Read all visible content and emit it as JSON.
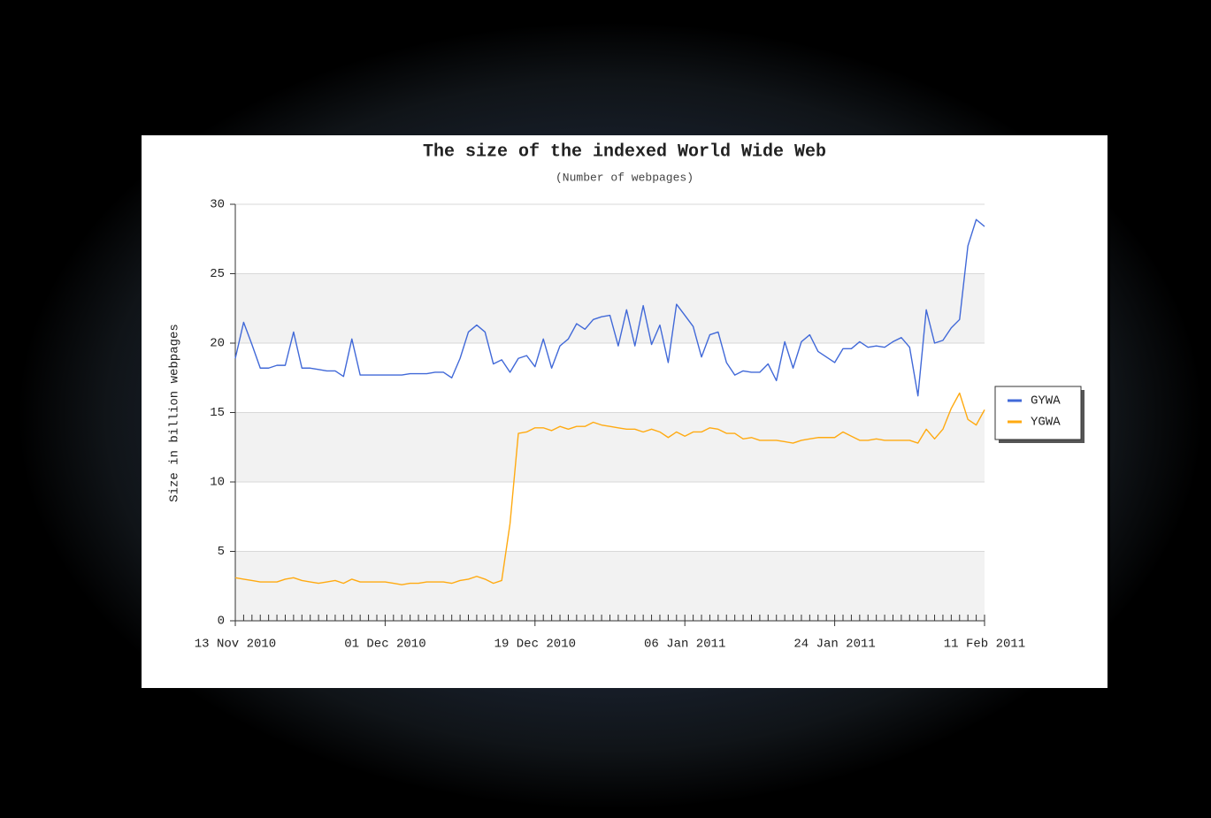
{
  "chart_data": {
    "type": "line",
    "title": "The size of the indexed World Wide Web",
    "subtitle": "(Number of webpages)",
    "y_label": "Size in billion webpages",
    "x": [
      "2010-11-13",
      "2010-11-14",
      "2010-11-15",
      "2010-11-16",
      "2010-11-17",
      "2010-11-18",
      "2010-11-19",
      "2010-11-20",
      "2010-11-21",
      "2010-11-22",
      "2010-11-23",
      "2010-11-24",
      "2010-11-25",
      "2010-11-26",
      "2010-11-27",
      "2010-11-28",
      "2010-11-29",
      "2010-11-30",
      "2010-12-01",
      "2010-12-02",
      "2010-12-03",
      "2010-12-04",
      "2010-12-05",
      "2010-12-06",
      "2010-12-07",
      "2010-12-08",
      "2010-12-09",
      "2010-12-10",
      "2010-12-11",
      "2010-12-12",
      "2010-12-13",
      "2010-12-14",
      "2010-12-15",
      "2010-12-16",
      "2010-12-17",
      "2010-12-18",
      "2010-12-19",
      "2010-12-20",
      "2010-12-21",
      "2010-12-22",
      "2010-12-23",
      "2010-12-24",
      "2010-12-25",
      "2010-12-26",
      "2010-12-27",
      "2010-12-28",
      "2010-12-29",
      "2010-12-30",
      "2010-12-31",
      "2011-01-01",
      "2011-01-02",
      "2011-01-03",
      "2011-01-04",
      "2011-01-05",
      "2011-01-06",
      "2011-01-07",
      "2011-01-08",
      "2011-01-09",
      "2011-01-10",
      "2011-01-11",
      "2011-01-12",
      "2011-01-13",
      "2011-01-14",
      "2011-01-15",
      "2011-01-16",
      "2011-01-17",
      "2011-01-18",
      "2011-01-19",
      "2011-01-20",
      "2011-01-21",
      "2011-01-22",
      "2011-01-23",
      "2011-01-24",
      "2011-01-25",
      "2011-01-26",
      "2011-01-27",
      "2011-01-28",
      "2011-01-29",
      "2011-01-30",
      "2011-01-31",
      "2011-02-01",
      "2011-02-02",
      "2011-02-03",
      "2011-02-04",
      "2011-02-05",
      "2011-02-06",
      "2011-02-07",
      "2011-02-08",
      "2011-02-09",
      "2011-02-10",
      "2011-02-11"
    ],
    "series": [
      {
        "name": "GYWA",
        "color": "#4169d8",
        "values": [
          18.9,
          21.5,
          19.9,
          18.2,
          18.2,
          18.4,
          18.4,
          20.8,
          18.2,
          18.2,
          18.1,
          18.0,
          18.0,
          17.6,
          20.3,
          17.7,
          17.7,
          17.7,
          17.7,
          17.7,
          17.7,
          17.8,
          17.8,
          17.8,
          17.9,
          17.9,
          17.5,
          18.9,
          20.8,
          21.3,
          20.8,
          18.5,
          18.8,
          17.9,
          18.9,
          19.1,
          18.3,
          20.3,
          18.2,
          19.8,
          20.3,
          21.4,
          21.0,
          21.7,
          21.9,
          22.0,
          19.8,
          22.4,
          19.8,
          22.7,
          19.9,
          21.3,
          18.6,
          22.8,
          22.0,
          21.2,
          19.0,
          20.6,
          20.8,
          18.6,
          17.7,
          18.0,
          17.9,
          17.9,
          18.5,
          17.3,
          20.1,
          18.2,
          20.1,
          20.6,
          19.4,
          19.0,
          18.6,
          19.6,
          19.6,
          20.1,
          19.7,
          19.8,
          19.7,
          20.1,
          20.4,
          19.7,
          16.2,
          22.4,
          20.0,
          20.2,
          21.1,
          21.7,
          27.0,
          28.9,
          28.4
        ]
      },
      {
        "name": "YGWA",
        "color": "#ffaa11",
        "values": [
          3.1,
          3.0,
          2.9,
          2.8,
          2.8,
          2.8,
          3.0,
          3.1,
          2.9,
          2.8,
          2.7,
          2.8,
          2.9,
          2.7,
          3.0,
          2.8,
          2.8,
          2.8,
          2.8,
          2.7,
          2.6,
          2.7,
          2.7,
          2.8,
          2.8,
          2.8,
          2.7,
          2.9,
          3.0,
          3.2,
          3.0,
          2.7,
          2.9,
          7.0,
          13.5,
          13.6,
          13.9,
          13.9,
          13.7,
          14.0,
          13.8,
          14.0,
          14.0,
          14.3,
          14.1,
          14.0,
          13.9,
          13.8,
          13.8,
          13.6,
          13.8,
          13.6,
          13.2,
          13.6,
          13.3,
          13.6,
          13.6,
          13.9,
          13.8,
          13.5,
          13.5,
          13.1,
          13.2,
          13.0,
          13.0,
          13.0,
          12.9,
          12.8,
          13.0,
          13.1,
          13.2,
          13.2,
          13.2,
          13.6,
          13.3,
          13.0,
          13.0,
          13.1,
          13.0,
          13.0,
          13.0,
          13.0,
          12.8,
          13.8,
          13.1,
          13.8,
          15.3,
          16.4,
          14.5,
          14.1,
          15.2
        ]
      }
    ],
    "xlim": [
      "2010-11-13",
      "2011-02-11"
    ],
    "xticks": [
      {
        "value": "2010-11-13",
        "label": "13 Nov 2010"
      },
      {
        "value": "2010-12-01",
        "label": "01 Dec 2010"
      },
      {
        "value": "2010-12-19",
        "label": "19 Dec 2010"
      },
      {
        "value": "2011-01-06",
        "label": "06 Jan 2011"
      },
      {
        "value": "2011-01-24",
        "label": "24 Jan 2011"
      },
      {
        "value": "2011-02-11",
        "label": "11 Feb 2011"
      }
    ],
    "ylim": [
      0,
      30
    ],
    "yticks": [
      0,
      5,
      10,
      15,
      20,
      25,
      30
    ],
    "grid": true,
    "legend": "right"
  }
}
